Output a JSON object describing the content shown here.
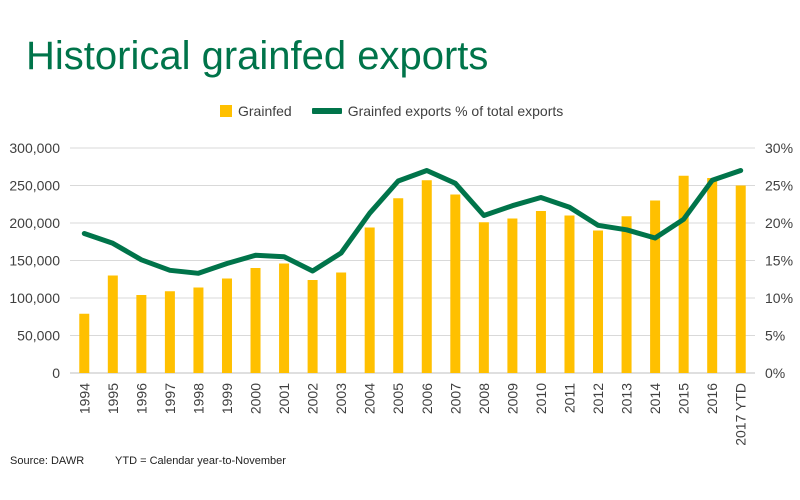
{
  "title": "Historical grainfed exports",
  "legend": {
    "bar_label": "Grainfed",
    "line_label": "Grainfed exports % of total exports"
  },
  "footer": {
    "source": "Source: DAWR",
    "note": "YTD = Calendar year-to-November"
  },
  "colors": {
    "bar": "#ffc000",
    "line": "#00744a",
    "axis_text": "#404040",
    "grid": "#d9d9d9",
    "title": "#00744a"
  },
  "chart_data": {
    "type": "bar",
    "title": "Historical grainfed exports",
    "xlabel": "",
    "ylabel": "",
    "y2label": "",
    "categories": [
      "1994",
      "1995",
      "1996",
      "1997",
      "1998",
      "1999",
      "2000",
      "2001",
      "2002",
      "2003",
      "2004",
      "2005",
      "2006",
      "2007",
      "2008",
      "2009",
      "2010",
      "2011",
      "2012",
      "2013",
      "2014",
      "2015",
      "2016",
      "2017 YTD"
    ],
    "ylim": [
      0,
      300000
    ],
    "yticks": [
      "0",
      "50,000",
      "100,000",
      "150,000",
      "200,000",
      "250,000",
      "300,000"
    ],
    "y2lim": [
      0,
      30
    ],
    "y2ticks": [
      "0%",
      "5%",
      "10%",
      "15%",
      "20%",
      "25%",
      "30%"
    ],
    "series": [
      {
        "name": "Grainfed",
        "type": "bar",
        "axis": "left",
        "values": [
          79000,
          130000,
          104000,
          109000,
          114000,
          126000,
          140000,
          146000,
          124000,
          134000,
          194000,
          233000,
          257000,
          238000,
          201000,
          206000,
          216000,
          210000,
          190000,
          209000,
          230000,
          263000,
          260000,
          250000
        ]
      },
      {
        "name": "Grainfed exports % of total exports",
        "type": "line",
        "axis": "right",
        "values": [
          18.6,
          17.3,
          15.1,
          13.7,
          13.3,
          14.6,
          15.7,
          15.5,
          13.6,
          16.0,
          21.3,
          25.6,
          27.0,
          25.3,
          21.0,
          22.3,
          23.4,
          22.1,
          19.7,
          19.1,
          18.0,
          20.5,
          25.7,
          27.0
        ]
      }
    ],
    "grid": true,
    "legend_position": "top"
  }
}
